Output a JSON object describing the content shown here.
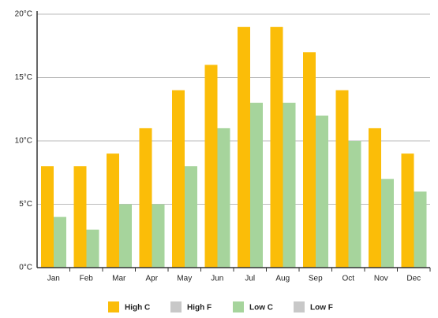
{
  "chart_data": {
    "type": "bar",
    "categories": [
      "Jan",
      "Feb",
      "Mar",
      "Apr",
      "May",
      "Jun",
      "Jul",
      "Aug",
      "Sep",
      "Oct",
      "Nov",
      "Dec"
    ],
    "series": [
      {
        "name": "High C",
        "color": "#fbbd08",
        "values": [
          8,
          8,
          9,
          11,
          14,
          16,
          19,
          19,
          17,
          14,
          11,
          9
        ]
      },
      {
        "name": "High F",
        "color": "#c8c8c8",
        "hidden": true,
        "values": [
          null,
          null,
          null,
          null,
          null,
          null,
          null,
          null,
          null,
          null,
          null,
          null
        ]
      },
      {
        "name": "Low C",
        "color": "#a6d49c",
        "values": [
          4,
          3,
          5,
          5,
          8,
          11,
          13,
          13,
          12,
          10,
          7,
          6
        ]
      },
      {
        "name": "Low F",
        "color": "#c8c8c8",
        "hidden": true,
        "values": [
          null,
          null,
          null,
          null,
          null,
          null,
          null,
          null,
          null,
          null,
          null,
          null
        ]
      }
    ],
    "ylim": [
      0,
      20
    ],
    "yticks": [
      {
        "value": 0,
        "label": "0°C"
      },
      {
        "value": 5,
        "label": "5°C"
      },
      {
        "value": 10,
        "label": "10°C"
      },
      {
        "value": 15,
        "label": "15°C"
      },
      {
        "value": 20,
        "label": "20°C"
      }
    ],
    "grid": true,
    "legend": "bottom"
  }
}
